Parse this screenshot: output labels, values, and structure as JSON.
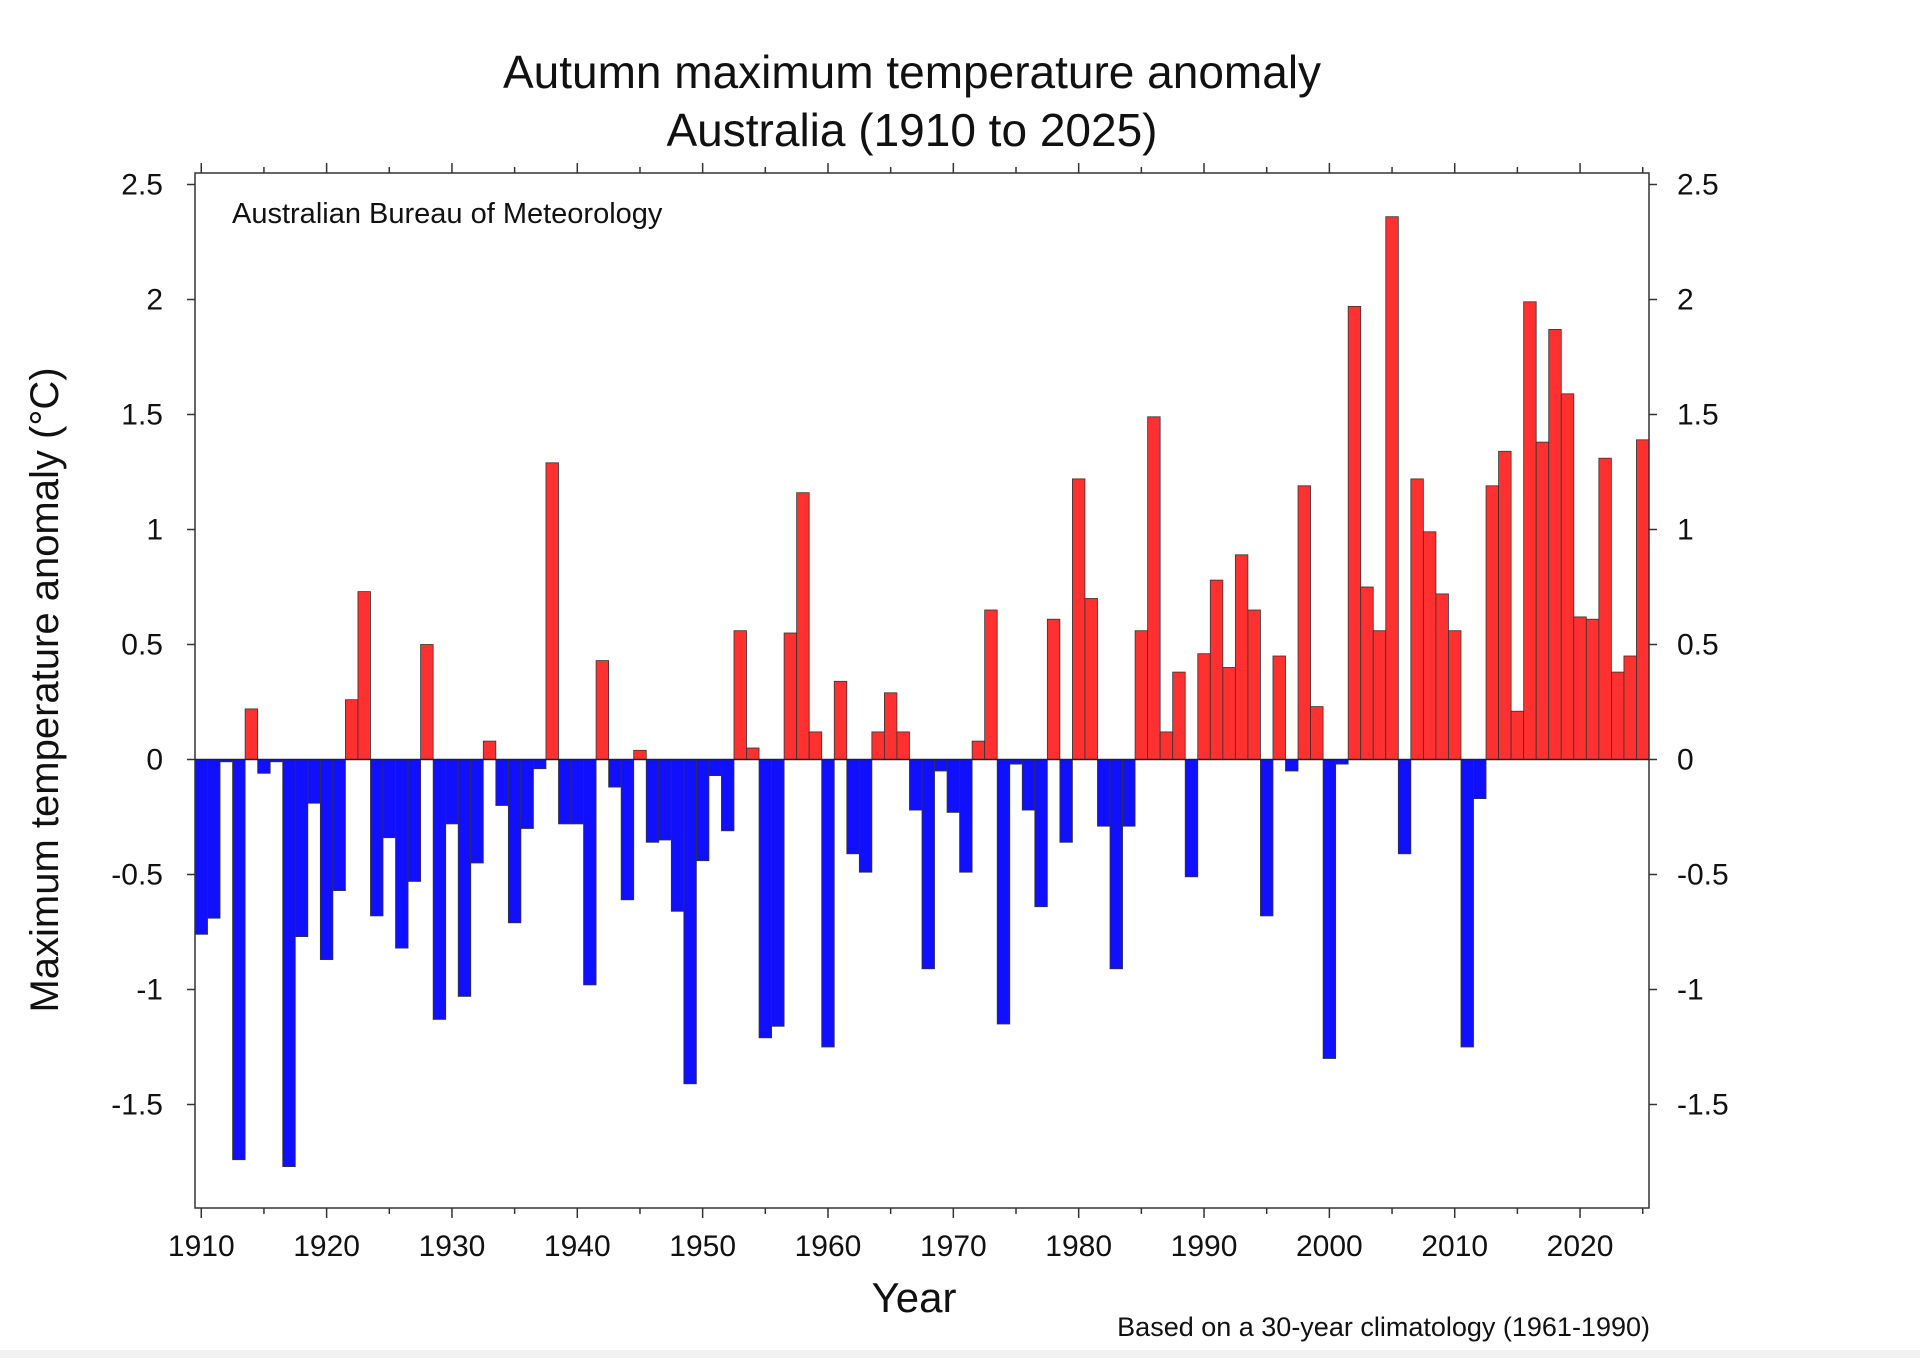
{
  "chart_data": {
    "type": "bar",
    "title": "Autumn maximum temperature anomaly",
    "subtitle": "Australia (1910 to 2025)",
    "annotation": "Australian Bureau of Meteorology",
    "footnote": "Based on a 30-year climatology (1961-1990)",
    "xlabel": "Year",
    "ylabel": "Maximum temperature anomaly (°C)",
    "ylim": [
      -1.95,
      2.55
    ],
    "xlim": [
      1909.5,
      2025.5
    ],
    "y_ticks": [
      "2.5",
      "2",
      "1.5",
      "1",
      "0.5",
      "0",
      "-0.5",
      "-1",
      "-1.5"
    ],
    "y_tick_values": [
      2.5,
      2,
      1.5,
      1,
      0.5,
      0,
      -0.5,
      -1,
      -1.5
    ],
    "x_ticks": [
      "1910",
      "1920",
      "1930",
      "1940",
      "1950",
      "1960",
      "1970",
      "1980",
      "1990",
      "2000",
      "2010",
      "2020"
    ],
    "x_tick_values": [
      1910,
      1920,
      1930,
      1940,
      1950,
      1960,
      1970,
      1980,
      1990,
      2000,
      2010,
      2020
    ],
    "positive_color": "#ff3030",
    "negative_color": "#1010ff",
    "grid": false,
    "legend": "none",
    "years": [
      1910,
      1911,
      1912,
      1913,
      1914,
      1915,
      1916,
      1917,
      1918,
      1919,
      1920,
      1921,
      1922,
      1923,
      1924,
      1925,
      1926,
      1927,
      1928,
      1929,
      1930,
      1931,
      1932,
      1933,
      1934,
      1935,
      1936,
      1937,
      1938,
      1939,
      1940,
      1941,
      1942,
      1943,
      1944,
      1945,
      1946,
      1947,
      1948,
      1949,
      1950,
      1951,
      1952,
      1953,
      1954,
      1955,
      1956,
      1957,
      1958,
      1959,
      1960,
      1961,
      1962,
      1963,
      1964,
      1965,
      1966,
      1967,
      1968,
      1969,
      1970,
      1971,
      1972,
      1973,
      1974,
      1975,
      1976,
      1977,
      1978,
      1979,
      1980,
      1981,
      1982,
      1983,
      1984,
      1985,
      1986,
      1987,
      1988,
      1989,
      1990,
      1991,
      1992,
      1993,
      1994,
      1995,
      1996,
      1997,
      1998,
      1999,
      2000,
      2001,
      2002,
      2003,
      2004,
      2005,
      2006,
      2007,
      2008,
      2009,
      2010,
      2011,
      2012,
      2013,
      2014,
      2015,
      2016,
      2017,
      2018,
      2019,
      2020,
      2021,
      2022,
      2023,
      2024,
      2025
    ],
    "values": [
      -0.76,
      -0.69,
      -0.01,
      -1.74,
      0.22,
      -0.06,
      -0.01,
      -1.77,
      -0.77,
      -0.19,
      -0.87,
      -0.57,
      0.26,
      0.73,
      -0.68,
      -0.34,
      -0.82,
      -0.53,
      0.5,
      -1.13,
      -0.28,
      -1.03,
      -0.45,
      0.08,
      -0.2,
      -0.71,
      -0.3,
      -0.04,
      1.29,
      -0.28,
      -0.28,
      -0.98,
      0.43,
      -0.12,
      -0.61,
      0.04,
      -0.36,
      -0.35,
      -0.66,
      -1.41,
      -0.44,
      -0.07,
      -0.31,
      0.56,
      0.05,
      -1.21,
      -1.16,
      0.55,
      1.16,
      0.12,
      -1.25,
      0.34,
      -0.41,
      -0.49,
      0.12,
      0.29,
      0.12,
      -0.22,
      -0.91,
      -0.05,
      -0.23,
      -0.49,
      0.08,
      0.65,
      -1.15,
      -0.02,
      -0.22,
      -0.64,
      0.61,
      -0.36,
      1.22,
      0.7,
      -0.29,
      -0.91,
      -0.29,
      0.56,
      1.49,
      0.12,
      0.38,
      -0.51,
      0.46,
      0.78,
      0.4,
      0.89,
      0.65,
      -0.68,
      0.45,
      -0.05,
      1.19,
      0.23,
      -1.3,
      -0.02,
      1.97,
      0.75,
      0.56,
      2.36,
      -0.41,
      1.22,
      0.99,
      0.72,
      0.56,
      -1.25,
      -0.17,
      1.19,
      1.34,
      0.21,
      1.99,
      1.38,
      1.87,
      1.59,
      0.62,
      0.61,
      1.31,
      0.38,
      0.45,
      1.39
    ]
  }
}
